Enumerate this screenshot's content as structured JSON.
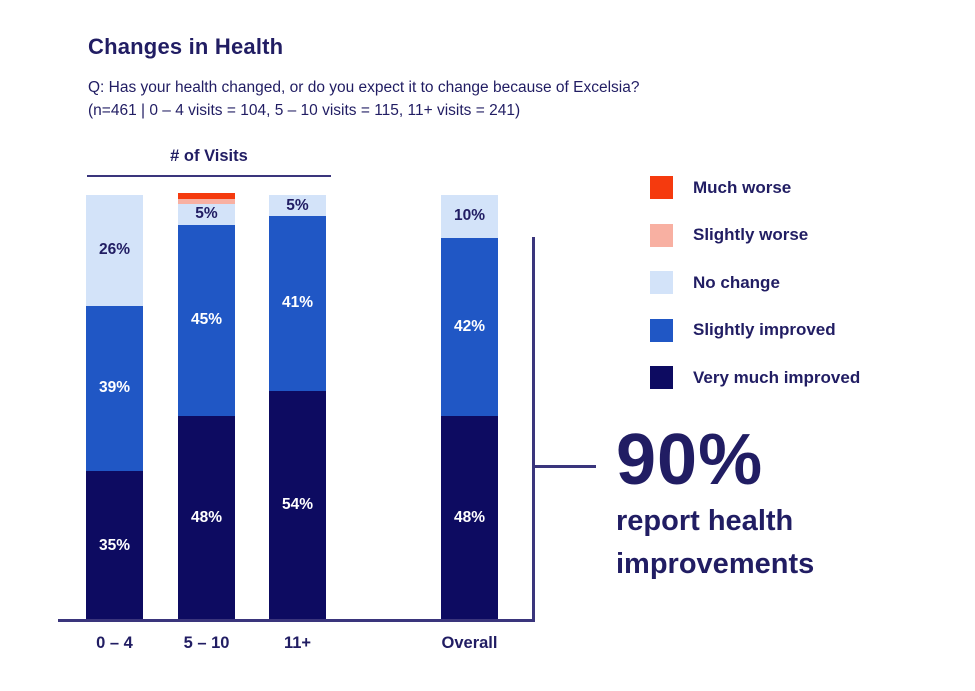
{
  "title": "Changes in Health",
  "subtitle": {
    "line1": "Q: Has your health changed, or do you expect it to change because of Excelsia?",
    "line2": "(n=461 | 0 – 4 visits = 104, 5 – 10 visits = 115, 11+ visits = 241)"
  },
  "group_axis_label": "# of Visits",
  "colors": {
    "much_worse": "#f53a0e",
    "slightly_worse": "#f8b0a2",
    "no_change": "#d3e3f9",
    "slightly_improved": "#2057c5",
    "very_much_improved": "#0d0b61",
    "text_navy": "#211d63",
    "line": "#3a357c",
    "background": "#ffffff"
  },
  "legend": [
    {
      "label": "Much worse",
      "color_key": "much_worse"
    },
    {
      "label": "Slightly worse",
      "color_key": "slightly_worse"
    },
    {
      "label": "No change",
      "color_key": "no_change"
    },
    {
      "label": "Slightly improved",
      "color_key": "slightly_improved"
    },
    {
      "label": "Very much improved",
      "color_key": "very_much_improved"
    }
  ],
  "chart_data": {
    "type": "bar",
    "stacked": true,
    "orientation": "vertical",
    "unit": "percent",
    "categories": [
      "0 – 4",
      "5 – 10",
      "11+",
      "Overall"
    ],
    "series": [
      {
        "name": "Much worse",
        "color_key": "much_worse",
        "label_style": "none",
        "values": [
          0,
          1.5,
          0,
          0
        ]
      },
      {
        "name": "Slightly worse",
        "color_key": "slightly_worse",
        "label_style": "none",
        "values": [
          0,
          1,
          0,
          0
        ]
      },
      {
        "name": "No change",
        "color_key": "no_change",
        "label_style": "dark",
        "values": [
          26,
          5,
          5,
          10
        ]
      },
      {
        "name": "Slightly improved",
        "color_key": "slightly_improved",
        "label_style": "light",
        "values": [
          39,
          45,
          41,
          42
        ]
      },
      {
        "name": "Very much improved",
        "color_key": "very_much_improved",
        "label_style": "light",
        "values": [
          35,
          48,
          54,
          48
        ]
      }
    ],
    "value_label_format": "{value}%",
    "ylim": [
      0,
      100
    ],
    "grid": false,
    "legend_position": "right",
    "annotation": "bracket on Overall bar spanning improved segments (42% + 48% = 90%)"
  },
  "callout": {
    "stat": "90%",
    "line1": "report health",
    "line2": "improvements"
  }
}
